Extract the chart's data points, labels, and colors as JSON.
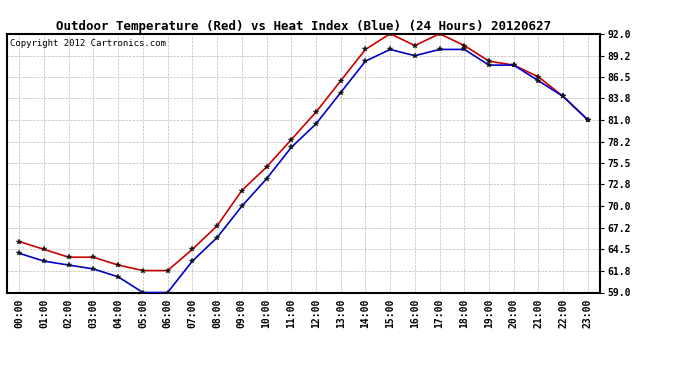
{
  "title": "Outdoor Temperature (Red) vs Heat Index (Blue) (24 Hours) 20120627",
  "copyright": "Copyright 2012 Cartronics.com",
  "x_labels": [
    "00:00",
    "01:00",
    "02:00",
    "03:00",
    "04:00",
    "05:00",
    "06:00",
    "07:00",
    "08:00",
    "09:00",
    "10:00",
    "11:00",
    "12:00",
    "13:00",
    "14:00",
    "15:00",
    "16:00",
    "17:00",
    "18:00",
    "19:00",
    "20:00",
    "21:00",
    "22:00",
    "23:00"
  ],
  "temp_red": [
    65.5,
    64.5,
    63.5,
    63.5,
    62.5,
    61.8,
    61.8,
    64.5,
    67.5,
    72.0,
    75.0,
    78.5,
    82.0,
    86.0,
    90.0,
    92.0,
    90.5,
    92.0,
    90.5,
    88.5,
    88.0,
    86.5,
    84.0,
    81.0
  ],
  "heat_blue": [
    64.0,
    63.0,
    62.5,
    62.0,
    61.0,
    59.0,
    59.0,
    63.0,
    66.0,
    70.0,
    73.5,
    77.5,
    80.5,
    84.5,
    88.5,
    90.0,
    89.2,
    90.0,
    90.0,
    88.0,
    88.0,
    86.0,
    84.0,
    81.0
  ],
  "ylim": [
    59.0,
    92.0
  ],
  "yticks": [
    59.0,
    61.8,
    64.5,
    67.2,
    70.0,
    72.8,
    75.5,
    78.2,
    81.0,
    83.8,
    86.5,
    89.2,
    92.0
  ],
  "background_color": "#ffffff",
  "plot_bg_color": "#ffffff",
  "grid_color": "#bbbbbb",
  "red_color": "#cc0000",
  "blue_color": "#0000cc",
  "marker_color": "#111111",
  "title_fontsize": 9,
  "tick_fontsize": 7,
  "copyright_fontsize": 6.5
}
